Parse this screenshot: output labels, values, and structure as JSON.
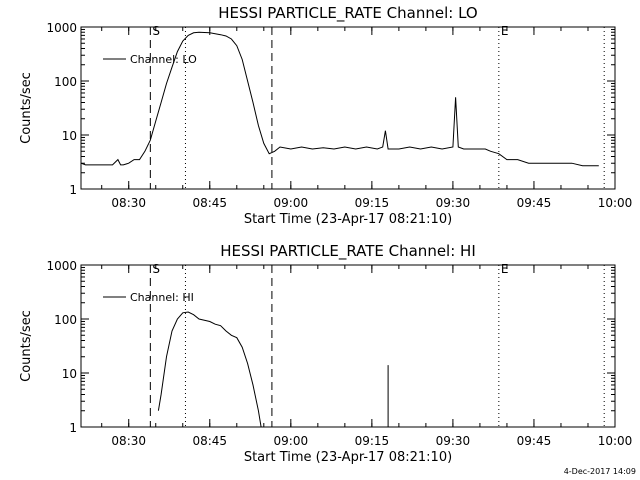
{
  "chart_data": [
    {
      "type": "line",
      "title": "HESSI PARTICLE_RATE Channel: LO",
      "xlabel": "Start Time (23-Apr-17 08:21:10)",
      "ylabel": "Counts/sec",
      "y_scale": "log",
      "ylim": [
        1,
        1000
      ],
      "xlim": [
        "08:21:10",
        "10:00:00"
      ],
      "x_ticks": [
        "08:30",
        "08:45",
        "09:00",
        "09:15",
        "09:30",
        "09:45",
        "10:00"
      ],
      "y_ticks": [
        "1",
        "10",
        "100",
        "1000"
      ],
      "legend": "top-left",
      "markers": {
        "dashed": [
          "08:34:00",
          "08:56:30"
        ],
        "dotted": [
          "08:40:30",
          "09:38:30",
          "09:58:00"
        ],
        "labels": [
          {
            "text": "S",
            "time": "08:34:00"
          },
          {
            "text": "E",
            "time": "09:38:30"
          }
        ]
      },
      "series": [
        {
          "name": "Channel: LO",
          "x": [
            "08:21:10",
            "08:22:00",
            "08:23:00",
            "08:24:00",
            "08:25:00",
            "08:27:00",
            "08:28:00",
            "08:28:30",
            "08:29:00",
            "08:30:00",
            "08:31:00",
            "08:32:00",
            "08:33:00",
            "08:34:00",
            "08:35:00",
            "08:36:00",
            "08:37:00",
            "08:38:00",
            "08:39:00",
            "08:40:00",
            "08:41:00",
            "08:42:00",
            "08:43:00",
            "08:44:00",
            "08:45:00",
            "08:46:00",
            "08:47:00",
            "08:48:00",
            "08:49:00",
            "08:50:00",
            "08:51:00",
            "08:52:00",
            "08:53:00",
            "08:54:00",
            "08:55:00",
            "08:56:00",
            "08:57:00",
            "08:58:00",
            "09:00:00",
            "09:02:00",
            "09:04:00",
            "09:06:00",
            "09:08:00",
            "09:10:00",
            "09:12:00",
            "09:14:00",
            "09:16:00",
            "09:17:00",
            "09:17:30",
            "09:18:00",
            "09:20:00",
            "09:22:00",
            "09:24:00",
            "09:26:00",
            "09:28:00",
            "09:30:00",
            "09:30:30",
            "09:31:00",
            "09:32:00",
            "09:34:00",
            "09:36:00",
            "09:37:00",
            "09:38:30",
            "09:40:00",
            "09:42:00",
            "09:44:00",
            "09:46:00",
            "09:48:00",
            "09:50:00",
            "09:52:00",
            "09:54:00",
            "09:56:00",
            "09:57:00"
          ],
          "values": [
            3,
            2.8,
            2.8,
            2.8,
            2.8,
            2.8,
            3.5,
            2.8,
            2.8,
            3,
            3.5,
            3.5,
            5,
            8,
            18,
            40,
            90,
            180,
            350,
            550,
            700,
            780,
            800,
            790,
            780,
            750,
            720,
            680,
            600,
            450,
            250,
            100,
            40,
            15,
            7,
            4.5,
            5,
            6,
            5.5,
            6,
            5.5,
            5.8,
            5.5,
            6,
            5.5,
            6,
            5.5,
            6,
            12,
            5.5,
            5.5,
            6,
            5.5,
            6,
            5.5,
            6,
            50,
            6,
            5.5,
            5.5,
            5.5,
            5,
            4.5,
            3.5,
            3.5,
            3,
            3,
            3,
            3,
            3,
            2.7,
            2.7,
            2.7
          ]
        }
      ]
    },
    {
      "type": "line",
      "title": "HESSI PARTICLE_RATE Channel: HI",
      "xlabel": "Start Time (23-Apr-17 08:21:10)",
      "ylabel": "Counts/sec",
      "y_scale": "log",
      "ylim": [
        1,
        1000
      ],
      "xlim": [
        "08:21:10",
        "10:00:00"
      ],
      "x_ticks": [
        "08:30",
        "08:45",
        "09:00",
        "09:15",
        "09:30",
        "09:45",
        "10:00"
      ],
      "y_ticks": [
        "1",
        "10",
        "100",
        "1000"
      ],
      "legend": "top-left",
      "markers": {
        "dashed": [
          "08:34:00",
          "08:56:30"
        ],
        "dotted": [
          "08:40:30",
          "09:38:30",
          "09:58:00"
        ],
        "labels": [
          {
            "text": "S",
            "time": "08:34:00"
          },
          {
            "text": "E",
            "time": "09:38:30"
          }
        ]
      },
      "series": [
        {
          "name": "Channel: HI",
          "x": [
            "08:35:30",
            "08:36:00",
            "08:37:00",
            "08:38:00",
            "08:39:00",
            "08:40:00",
            "08:41:00",
            "08:42:00",
            "08:43:00",
            "08:44:00",
            "08:45:00",
            "08:46:00",
            "08:47:00",
            "08:48:00",
            "08:49:00",
            "08:50:00",
            "08:51:00",
            "08:52:00",
            "08:53:00",
            "08:54:00",
            "08:54:30",
            "09:18:00",
            "09:18:00"
          ],
          "values": [
            2,
            4,
            20,
            60,
            100,
            130,
            135,
            120,
            100,
            95,
            90,
            80,
            75,
            60,
            50,
            45,
            30,
            15,
            6,
            2,
            1,
            1,
            14
          ]
        }
      ]
    }
  ],
  "footer": {
    "stamp": "4-Dec-2017 14:09"
  }
}
